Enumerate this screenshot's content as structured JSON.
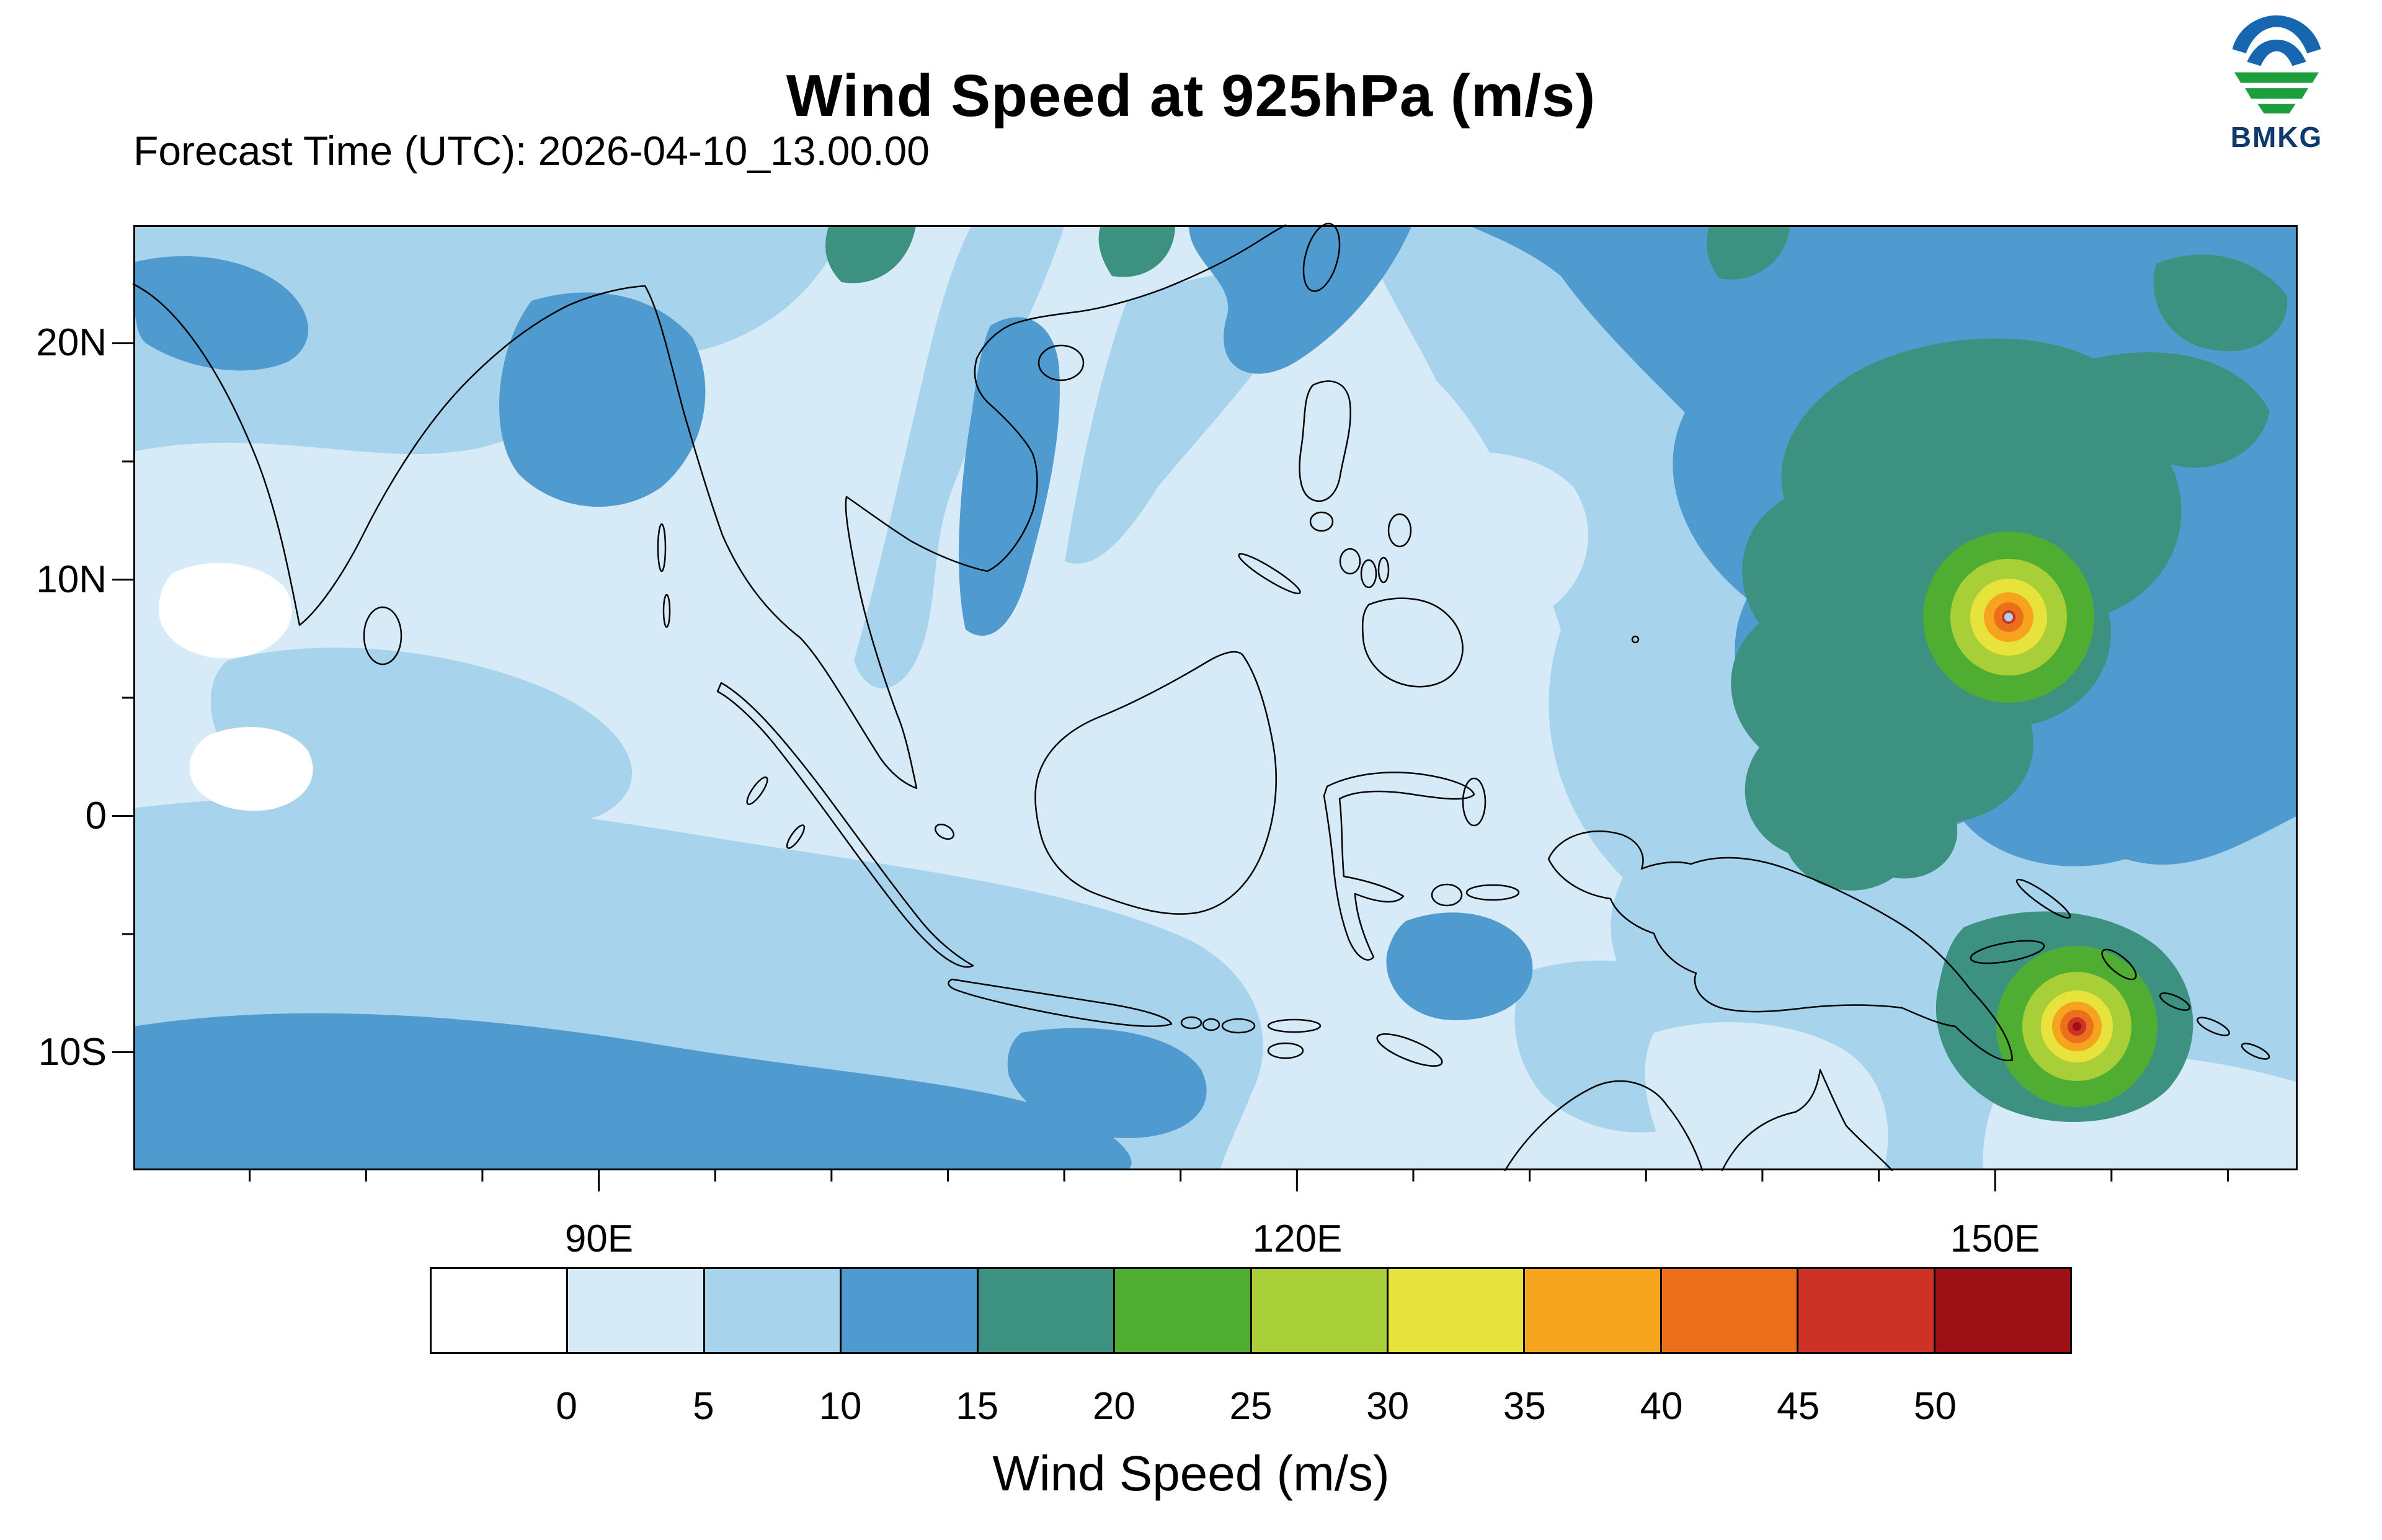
{
  "header": {
    "title": "Wind Speed at 925hPa (m/s)",
    "forecast_label": "Forecast Time (UTC): 2026-04-10_13.00.00",
    "logo_text": "BMKG"
  },
  "map": {
    "lat_ticks": [
      "20N",
      "10N",
      "0",
      "10S"
    ],
    "lon_ticks": [
      "90E",
      "120E",
      "150E"
    ]
  },
  "colorbar": {
    "title": "Wind Speed (m/s)",
    "tick_labels": [
      "0",
      "5",
      "10",
      "15",
      "20",
      "25",
      "30",
      "35",
      "40",
      "45",
      "50"
    ],
    "colors": [
      "#ffffff",
      "#d6ebf7",
      "#a8d3ec",
      "#4f9bcf",
      "#3d9180",
      "#4fae32",
      "#a9cf38",
      "#e8e33c",
      "#f6a41e",
      "#ec6f1b",
      "#cc3226",
      "#9d1116"
    ]
  },
  "chart_data": {
    "type": "heatmap",
    "subtype": "filled-contour-weather-map",
    "title": "Wind Speed at 925hPa (m/s)",
    "forecast_time_utc": "2026-04-10_13.00.00",
    "source_logo": "BMKG",
    "colorbar_label": "Wind Speed (m/s)",
    "units": "m/s",
    "contour_levels": [
      0,
      5,
      10,
      15,
      20,
      25,
      30,
      35,
      40,
      45,
      50
    ],
    "palette": [
      "#ffffff",
      "#d6ebf7",
      "#a8d3ec",
      "#4f9bcf",
      "#3d9180",
      "#4fae32",
      "#a9cf38",
      "#e8e33c",
      "#f6a41e",
      "#ec6f1b",
      "#cc3226",
      "#9d1116"
    ],
    "x_axis": {
      "tick_labels": [
        "90E",
        "120E",
        "150E"
      ],
      "approx_lon_range": [
        70,
        163
      ]
    },
    "y_axis": {
      "tick_labels": [
        "20N",
        "10N",
        "0",
        "10S"
      ],
      "approx_lat_range": [
        -15,
        25
      ]
    },
    "legend_position": "bottom",
    "grid": false,
    "features": [
      {
        "name": "tropical-cyclone-north",
        "approx_position": "8.5N 150E (western North Pacific)",
        "peak_band_mps": [
          40,
          45
        ],
        "description": "Closed cyclone with yellow/orange core, small calm eye, embedded in broad 15-20 m/s region"
      },
      {
        "name": "tropical-cyclone-south",
        "approx_position": "9S 153.5E (Solomon Sea, east of New Guinea)",
        "peak_band_mps": [
          45,
          50
        ],
        "description": "Cyclone with red 45-50 m/s core surrounded by 20-30 m/s ring"
      },
      {
        "name": "strong-trade-wind-mass",
        "approx_position": "130E-157E, 0-18N",
        "band_mps": [
          15,
          20
        ],
        "description": "Large teal-green 15-20 m/s area stretching from the cyclone down to the New Guinea north coast"
      },
      {
        "name": "southern-indian-ocean-band",
        "approx_position": "70E-110E near 12S-15S",
        "band_mps": [
          10,
          15
        ]
      },
      {
        "name": "background-maritime-continent",
        "band_mps": [
          0,
          10
        ],
        "description": "Most of Indonesia, Indochina and surrounding seas show 0-10 m/s (pale blues)"
      }
    ]
  }
}
